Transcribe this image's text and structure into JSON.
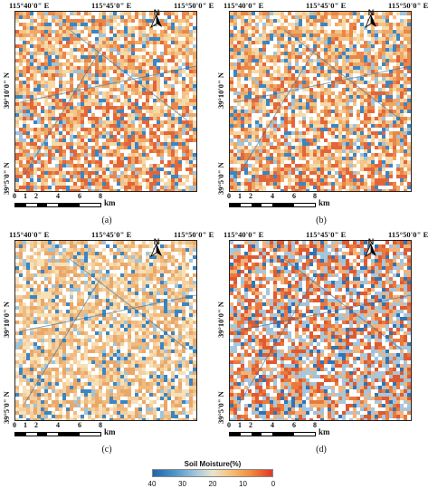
{
  "panels": [
    {
      "id": "a",
      "caption": "(a)"
    },
    {
      "id": "b",
      "caption": "(b)"
    },
    {
      "id": "c",
      "caption": "(c)"
    },
    {
      "id": "d",
      "caption": "(d)"
    }
  ],
  "lon_ticks": [
    "115°40'0\" E",
    "115°45'0\" E",
    "115°50'0\" E"
  ],
  "lat_ticks": [
    "39°10'0\" N",
    "39°5'0\" N"
  ],
  "north_label": "N",
  "scale": {
    "ticks": [
      "0",
      "1",
      "2",
      "4",
      "6",
      "8"
    ],
    "unit": "km"
  },
  "legend": {
    "title": "Soil Moisture(%)",
    "labels": [
      "40",
      "30",
      "20",
      "10",
      "0"
    ],
    "colors": [
      "#2166ac",
      "#4d94c8",
      "#9dc3dc",
      "#e9e4cc",
      "#f6c07a",
      "#f08a3f",
      "#e0392a"
    ]
  }
}
